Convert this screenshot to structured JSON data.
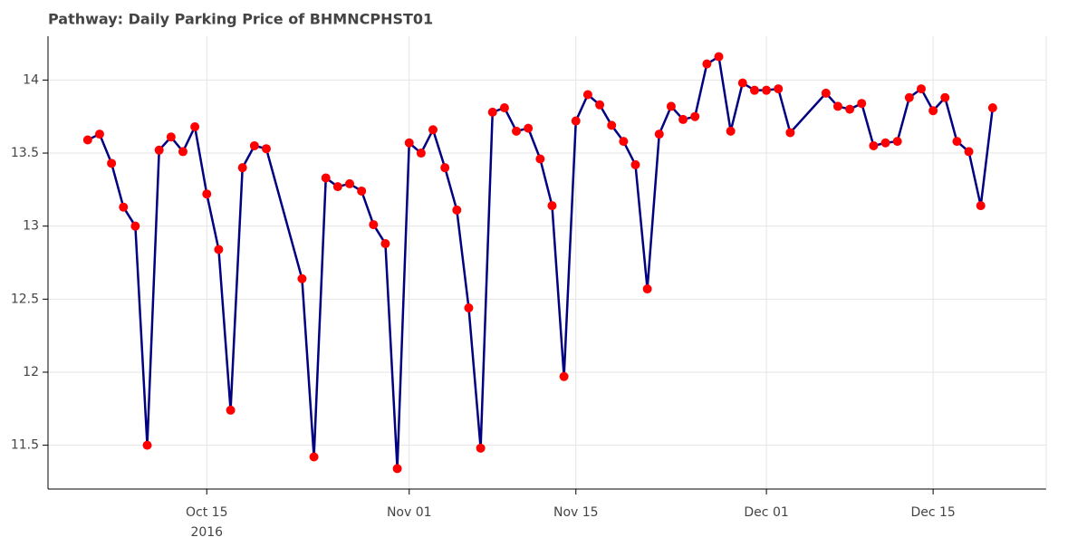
{
  "chart_data": {
    "type": "line",
    "title": "Pathway: Daily Parking Price of BHMNCPHST01",
    "x": [
      "2016-10-05",
      "2016-10-06",
      "2016-10-07",
      "2016-10-08",
      "2016-10-09",
      "2016-10-10",
      "2016-10-11",
      "2016-10-12",
      "2016-10-13",
      "2016-10-14",
      "2016-10-15",
      "2016-10-16",
      "2016-10-17",
      "2016-10-18",
      "2016-10-19",
      "2016-10-20",
      "2016-10-23",
      "2016-10-24",
      "2016-10-25",
      "2016-10-26",
      "2016-10-27",
      "2016-10-28",
      "2016-10-29",
      "2016-10-30",
      "2016-10-31",
      "2016-11-01",
      "2016-11-02",
      "2016-11-03",
      "2016-11-04",
      "2016-11-05",
      "2016-11-06",
      "2016-11-07",
      "2016-11-08",
      "2016-11-09",
      "2016-11-10",
      "2016-11-11",
      "2016-11-12",
      "2016-11-13",
      "2016-11-14",
      "2016-11-15",
      "2016-11-16",
      "2016-11-17",
      "2016-11-18",
      "2016-11-19",
      "2016-11-20",
      "2016-11-21",
      "2016-11-22",
      "2016-11-23",
      "2016-11-24",
      "2016-11-25",
      "2016-11-26",
      "2016-11-27",
      "2016-11-28",
      "2016-11-29",
      "2016-11-30",
      "2016-12-01",
      "2016-12-02",
      "2016-12-03",
      "2016-12-06",
      "2016-12-07",
      "2016-12-08",
      "2016-12-09",
      "2016-12-10",
      "2016-12-11",
      "2016-12-12",
      "2016-12-13",
      "2016-12-14",
      "2016-12-15",
      "2016-12-16",
      "2016-12-17",
      "2016-12-18",
      "2016-12-19",
      "2016-12-20"
    ],
    "series": [
      {
        "line_color": "#000080",
        "color": "#ff0000",
        "values": [
          13.59,
          13.63,
          13.43,
          13.13,
          13.0,
          11.5,
          13.52,
          13.61,
          13.51,
          13.68,
          13.22,
          12.84,
          11.74,
          13.4,
          13.55,
          13.53,
          12.64,
          11.42,
          13.33,
          13.27,
          13.29,
          13.24,
          13.01,
          12.88,
          11.34,
          13.57,
          13.5,
          13.66,
          13.4,
          13.11,
          12.44,
          11.48,
          13.78,
          13.81,
          13.65,
          13.67,
          13.46,
          13.14,
          11.97,
          13.72,
          13.9,
          13.83,
          13.69,
          13.58,
          13.42,
          12.57,
          13.63,
          13.82,
          13.73,
          13.75,
          14.11,
          14.16,
          13.65,
          13.98,
          13.93,
          13.93,
          13.94,
          13.64,
          13.91,
          13.82,
          13.8,
          13.84,
          13.55,
          13.57,
          13.58,
          13.88,
          13.94,
          13.79,
          13.88,
          13.58,
          13.51,
          13.14,
          13.81
        ]
      }
    ],
    "xlim": [
      "2016-10-01T16:00",
      "2016-12-24T12:00"
    ],
    "xticks": [
      {
        "value": "2016-10-15",
        "label": "Oct 15",
        "sublabel": "2016"
      },
      {
        "value": "2016-11-01",
        "label": "Nov 01"
      },
      {
        "value": "2016-11-15",
        "label": "Nov 15"
      },
      {
        "value": "2016-12-01",
        "label": "Dec 01"
      },
      {
        "value": "2016-12-15",
        "label": "Dec 15"
      }
    ],
    "ylim": [
      11.2,
      14.3
    ],
    "yticks": [
      11.5,
      12,
      12.5,
      13,
      13.5,
      14
    ],
    "grid": true
  }
}
